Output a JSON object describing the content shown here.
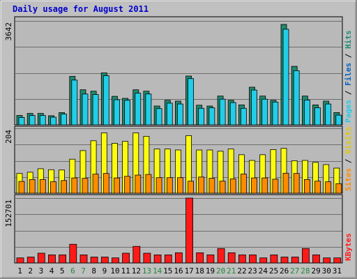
{
  "chart_data": {
    "type": "bar",
    "title": "Daily usage for August 2011",
    "days": [
      "1",
      "2",
      "3",
      "4",
      "5",
      "6",
      "7",
      "8",
      "9",
      "10",
      "11",
      "12",
      "13",
      "14",
      "15",
      "16",
      "17",
      "18",
      "19",
      "20",
      "21",
      "22",
      "23",
      "24",
      "25",
      "26",
      "27",
      "28",
      "29",
      "30",
      "31"
    ],
    "weekend_days": [
      "6",
      "7",
      "13",
      "14",
      "20",
      "21",
      "27",
      "28"
    ],
    "panels": [
      {
        "name": "hits-files-pages",
        "ymax": 3642,
        "ymax_label": "3642",
        "side_label": {
          "pages": "Pages",
          "files": "Files",
          "hits": "Hits",
          "sep": " / "
        },
        "series": [
          {
            "name": "Hits",
            "color": "#1f8a6f",
            "values": [
              330,
              400,
              400,
              320,
              430,
              1700,
              1230,
              1180,
              1820,
              1000,
              930,
              1230,
              1180,
              660,
              860,
              830,
              1710,
              690,
              660,
              1010,
              860,
              700,
              1320,
              1010,
              860,
              3520,
              2050,
              1010,
              700,
              830,
              430
            ]
          },
          {
            "name": "Files",
            "color": "#22cde8",
            "values": [
              260,
              330,
              330,
              270,
              380,
              1570,
              1080,
              1060,
              1720,
              880,
              860,
              1110,
              1080,
              570,
              760,
              730,
              1620,
              580,
              600,
              900,
              780,
              580,
              1220,
              900,
              800,
              3350,
              1900,
              870,
              600,
              730,
              340
            ]
          }
        ]
      },
      {
        "name": "visits-sites",
        "ymax": 204,
        "ymax_label": "204",
        "side_label": {
          "sites": "Sites",
          "visits": "Visits",
          "sep": " / "
        },
        "series": [
          {
            "name": "Visits",
            "color": "#fbfb10",
            "values": [
              62,
              66,
              77,
              74,
              73,
              107,
              134,
              165,
              190,
              157,
              163,
              190,
              179,
              139,
              139,
              136,
              181,
              136,
              136,
              132,
              139,
              121,
              103,
              121,
              137,
              141,
              102,
              103,
              97,
              90,
              79
            ]
          },
          {
            "name": "Sites",
            "color": "#ff8c00",
            "values": [
              37,
              43,
              43,
              36,
              40,
              48,
              47,
              60,
              62,
              48,
              53,
              57,
              59,
              49,
              49,
              49,
              38,
              51,
              47,
              38,
              45,
              60,
              48,
              48,
              44,
              63,
              62,
              43,
              38,
              36,
              30
            ]
          }
        ]
      },
      {
        "name": "kbytes",
        "ymax": 152701,
        "ymax_label": "152701",
        "side_label": {
          "kbytes": "KBytes"
        },
        "series": [
          {
            "name": "KBytes",
            "color": "#ff1a1a",
            "values": [
              12000,
              14000,
              23000,
              19000,
              19000,
              44000,
              19000,
              14000,
              14000,
              12000,
              23000,
              39000,
              23000,
              19000,
              19000,
              24000,
              152701,
              24000,
              19000,
              34000,
              24000,
              19000,
              19000,
              12000,
              19000,
              14000,
              14000,
              34000,
              19000,
              12000,
              12000
            ]
          }
        ]
      }
    ]
  }
}
